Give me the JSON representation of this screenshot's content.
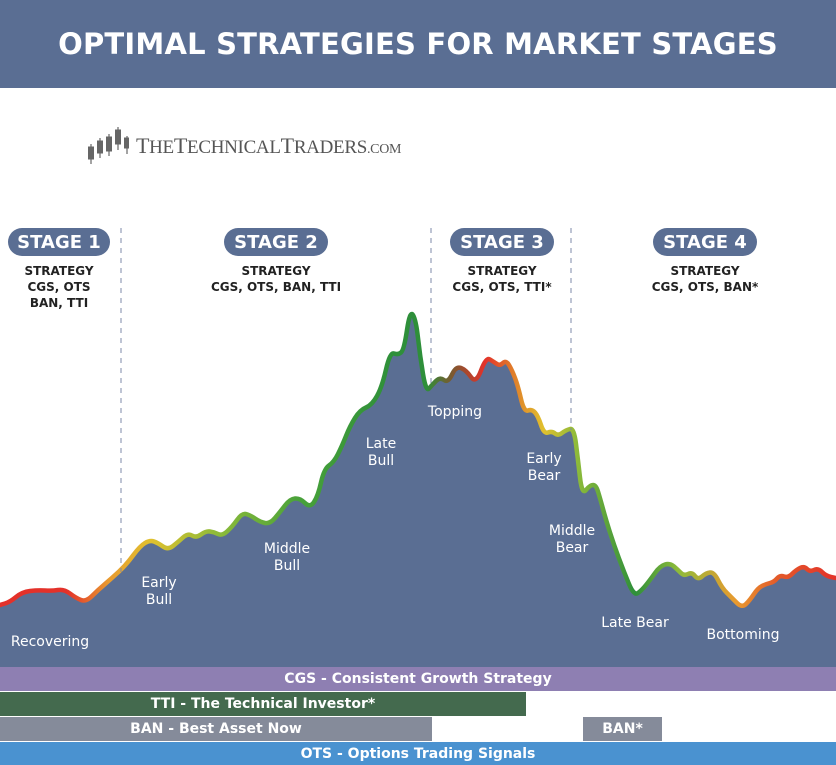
{
  "title": "OPTIMAL STRATEGIES FOR MARKET STAGES",
  "logo": {
    "name_part1": "T",
    "name_part2": "HE",
    "name_part3": "T",
    "name_part4": "ECHNICAL",
    "name_part5": "T",
    "name_part6": "RADERS",
    "name_part7": ".COM"
  },
  "stages": [
    {
      "label": "STAGE 1",
      "strategy_heading": "STRATEGY",
      "strategy_line1": "CGS, OTS",
      "strategy_line2": "BAN, TTI"
    },
    {
      "label": "STAGE 2",
      "strategy_heading": "STRATEGY",
      "strategy_line1": "CGS, OTS, BAN, TTI",
      "strategy_line2": ""
    },
    {
      "label": "STAGE 3",
      "strategy_heading": "STRATEGY",
      "strategy_line1": "CGS, OTS, TTI*",
      "strategy_line2": ""
    },
    {
      "label": "STAGE 4",
      "strategy_heading": "STRATEGY",
      "strategy_line1": "CGS, OTS, BAN*",
      "strategy_line2": ""
    }
  ],
  "phases": [
    {
      "line1": "Recovering",
      "line2": ""
    },
    {
      "line1": "Early",
      "line2": "Bull"
    },
    {
      "line1": "Middle",
      "line2": "Bull"
    },
    {
      "line1": "Late",
      "line2": "Bull"
    },
    {
      "line1": "Topping",
      "line2": ""
    },
    {
      "line1": "Early",
      "line2": "Bear"
    },
    {
      "line1": "Middle",
      "line2": "Bear"
    },
    {
      "line1": "Late Bear",
      "line2": ""
    },
    {
      "line1": "Bottoming",
      "line2": ""
    }
  ],
  "bands": {
    "cgs": "CGS - Consistent Growth Strategy",
    "tti": "TTI - The Technical Investor*",
    "ban": "BAN - Best Asset Now",
    "ban_star": "BAN*",
    "ots": "OTS - Options Trading Signals"
  },
  "colors": {
    "header": "#5a6e93",
    "area": "#5a6e93",
    "cgs": "#8e7fb2",
    "tti": "#446a4e",
    "ban": "#858b9a",
    "ots": "#4a92d0",
    "line_red": "#e3312a",
    "line_yellow": "#e0c02e",
    "line_green": "#2e8f3a"
  }
}
